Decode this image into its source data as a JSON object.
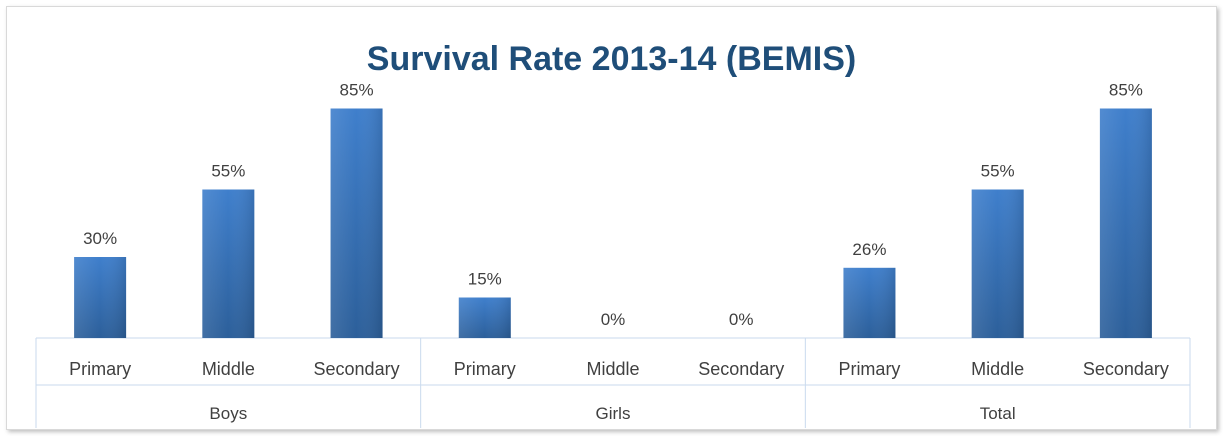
{
  "chart_data": {
    "type": "bar",
    "title": "Survival Rate 2013-14 (BEMIS)",
    "xlabel": "",
    "ylabel": "",
    "ylim": [
      0,
      100
    ],
    "grid": false,
    "legend": "none",
    "groups": [
      "Boys",
      "Girls",
      "Total"
    ],
    "categories": [
      "Primary",
      "Middle",
      "Secondary",
      "Primary",
      "Middle",
      "Secondary",
      "Primary",
      "Middle",
      "Secondary"
    ],
    "group_of_category": [
      0,
      0,
      0,
      1,
      1,
      1,
      2,
      2,
      2
    ],
    "values": [
      30,
      55,
      85,
      15,
      0,
      0,
      26,
      55,
      85
    ],
    "data_labels": [
      "30%",
      "55%",
      "85%",
      "15%",
      "0%",
      "0%",
      "26%",
      "55%",
      "85%"
    ],
    "bar_color": "#3a78c3"
  }
}
